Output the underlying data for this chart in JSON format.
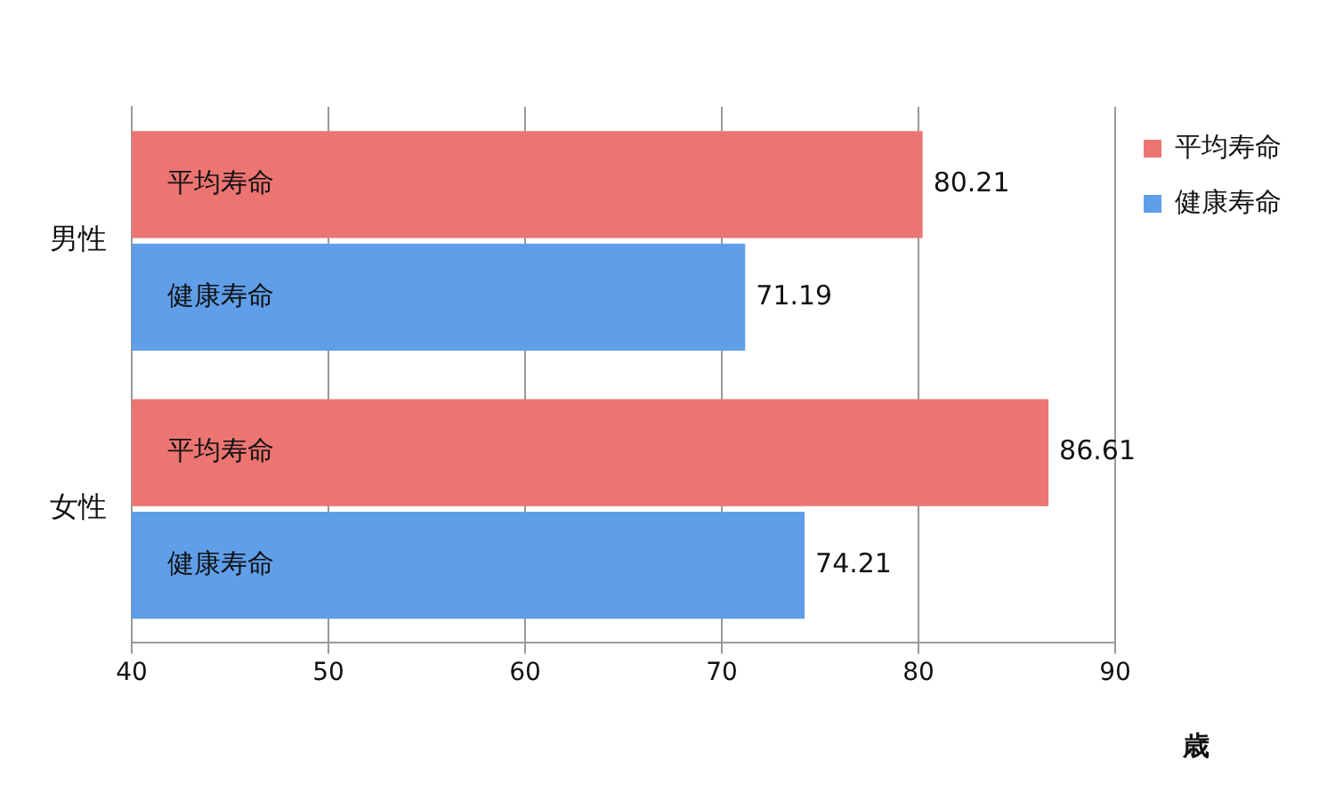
{
  "chart_data": {
    "type": "bar",
    "orientation": "horizontal",
    "categories": [
      "男性",
      "女性"
    ],
    "series": [
      {
        "name": "平均寿命",
        "color": "#ec7572",
        "values": [
          80.21,
          86.61
        ]
      },
      {
        "name": "健康寿命",
        "color": "#5f9ee9",
        "values": [
          71.19,
          74.21
        ]
      }
    ],
    "xlim": [
      40,
      90
    ],
    "xticks": [
      40,
      50,
      60,
      70,
      80,
      90
    ],
    "xlabel": "歳",
    "grid": "x",
    "legend": "right",
    "data_labels": true
  }
}
